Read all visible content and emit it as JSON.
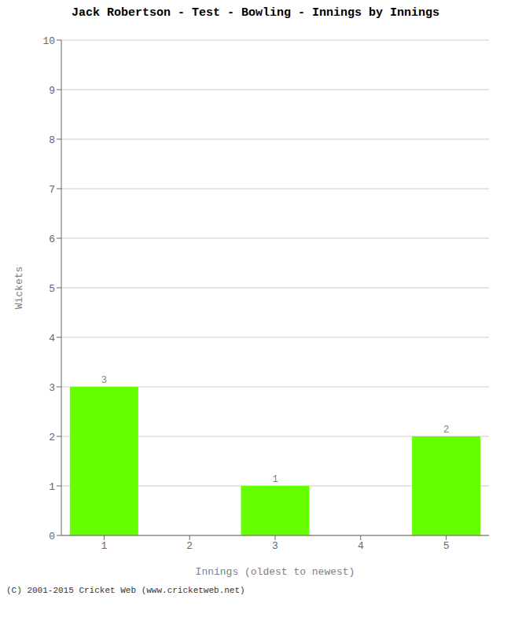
{
  "chart_data": {
    "type": "bar",
    "title": "Jack Robertson - Test - Bowling - Innings by Innings",
    "xlabel": "Innings (oldest to newest)",
    "ylabel": "Wickets",
    "categories": [
      "1",
      "2",
      "3",
      "4",
      "5"
    ],
    "values": [
      3,
      0,
      1,
      0,
      2
    ],
    "color": "#66ff00",
    "ylim": [
      0,
      10
    ],
    "yticks": [
      0,
      1,
      2,
      3,
      4,
      5,
      6,
      7,
      8,
      9,
      10
    ],
    "grid": true,
    "data_labels": true,
    "annotations": [
      "(C) 2001-2015 Cricket Web (www.cricketweb.net)"
    ]
  }
}
